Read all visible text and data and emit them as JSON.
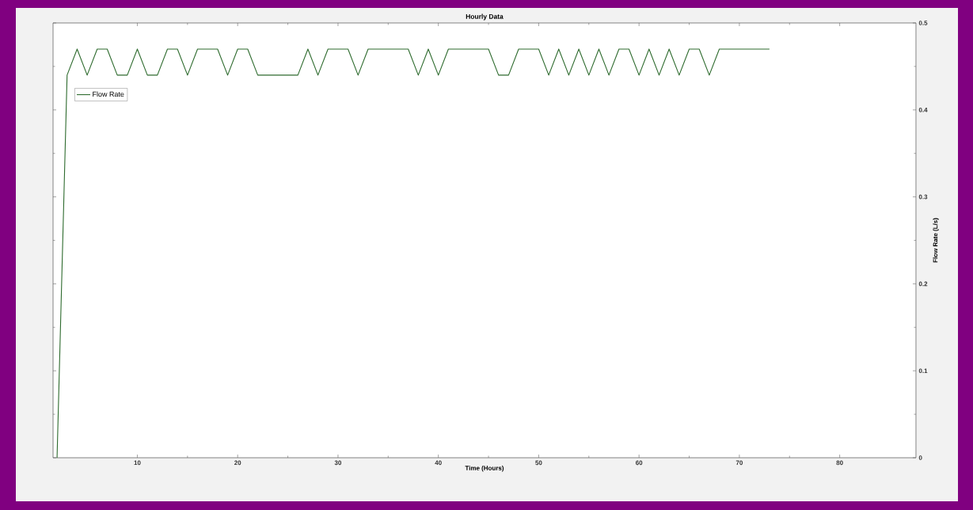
{
  "chart_data": {
    "type": "line",
    "title": "Hourly Data",
    "xlabel": "Time (Hours)",
    "ylabel": "Flow Rate (L/s)",
    "x": [
      2,
      3,
      4,
      5,
      6,
      7,
      8,
      9,
      10,
      11,
      12,
      13,
      14,
      15,
      16,
      17,
      18,
      19,
      20,
      21,
      22,
      23,
      24,
      25,
      26,
      27,
      28,
      29,
      30,
      31,
      32,
      33,
      34,
      35,
      36,
      37,
      38,
      39,
      40,
      41,
      42,
      43,
      44,
      45,
      46,
      47,
      48,
      49,
      50,
      51,
      52,
      53,
      54,
      55,
      56,
      57,
      58,
      59,
      60,
      61,
      62,
      63,
      64,
      65,
      66,
      67,
      68,
      69,
      70,
      71,
      72,
      73
    ],
    "series": [
      {
        "name": "Flow Rate",
        "color": "#2e6b2e",
        "values": [
          0,
          0.44,
          0.47,
          0.44,
          0.47,
          0.47,
          0.44,
          0.44,
          0.47,
          0.44,
          0.44,
          0.47,
          0.47,
          0.44,
          0.47,
          0.47,
          0.47,
          0.44,
          0.47,
          0.47,
          0.44,
          0.44,
          0.44,
          0.44,
          0.44,
          0.47,
          0.44,
          0.47,
          0.47,
          0.47,
          0.44,
          0.47,
          0.47,
          0.47,
          0.47,
          0.47,
          0.44,
          0.47,
          0.44,
          0.47,
          0.47,
          0.47,
          0.47,
          0.47,
          0.44,
          0.44,
          0.47,
          0.47,
          0.47,
          0.44,
          0.47,
          0.44,
          0.47,
          0.44,
          0.47,
          0.44,
          0.47,
          0.47,
          0.44,
          0.47,
          0.44,
          0.47,
          0.44,
          0.47,
          0.47,
          0.44,
          0.47,
          0.47,
          0.47,
          0.47,
          0.47,
          0.47
        ]
      }
    ],
    "xlim": [
      1.6,
      87.6
    ],
    "ylim": [
      0,
      0.5
    ],
    "xticks": [
      10,
      20,
      30,
      40,
      50,
      60,
      70,
      80
    ],
    "yticks": [
      0,
      0.1,
      0.2,
      0.3,
      0.4,
      0.5
    ],
    "grid": false,
    "legend": "top left",
    "marker": "none",
    "line_style": "solid"
  }
}
